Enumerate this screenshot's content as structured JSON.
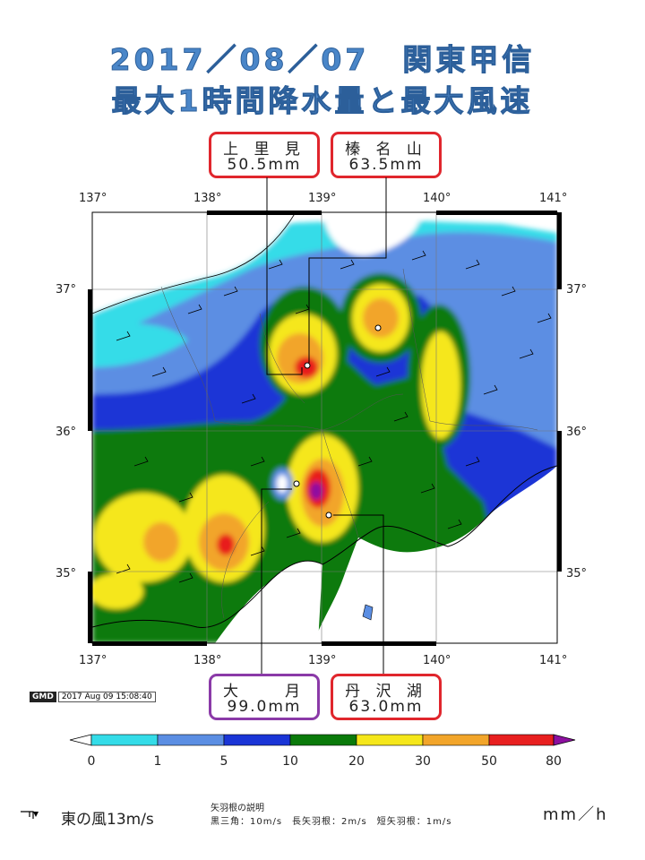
{
  "title_line1": "2017／08／07　関東甲信",
  "title_line2": "最大1時間降水量と最大風速",
  "callouts": {
    "kamisatomi": {
      "name": "上 里 見",
      "value": "50.5mm"
    },
    "harunasan": {
      "name": "榛 名 山",
      "value": "63.5mm"
    },
    "tsuki": {
      "name": "大　　月",
      "value": "99.0mm"
    },
    "tanzawako": {
      "name": "丹 沢 湖",
      "value": "63.0mm"
    }
  },
  "map": {
    "lon_labels": [
      "137°",
      "138°",
      "139°",
      "140°",
      "141°"
    ],
    "lat_labels": [
      "37°",
      "36°",
      "35°"
    ]
  },
  "gmd": {
    "logo": "GMD",
    "timestamp": "2017 Aug 09 15:08:40"
  },
  "colorbar": {
    "ticks": [
      "0",
      "1",
      "5",
      "10",
      "20",
      "30",
      "50",
      "80"
    ],
    "colors": [
      "#34dce8",
      "#5b8ee3",
      "#1a35d6",
      "#0a7a0a",
      "#f5e71a",
      "#f2a52a",
      "#e81f1f",
      "#8d10a0"
    ],
    "unit": "mm／h"
  },
  "wind_legend": {
    "example": "東の風13m/s",
    "note_title": "矢羽根の説明",
    "note_body": "黒三角：10m/s　長矢羽根：2m/s　短矢羽根：1m/s"
  }
}
